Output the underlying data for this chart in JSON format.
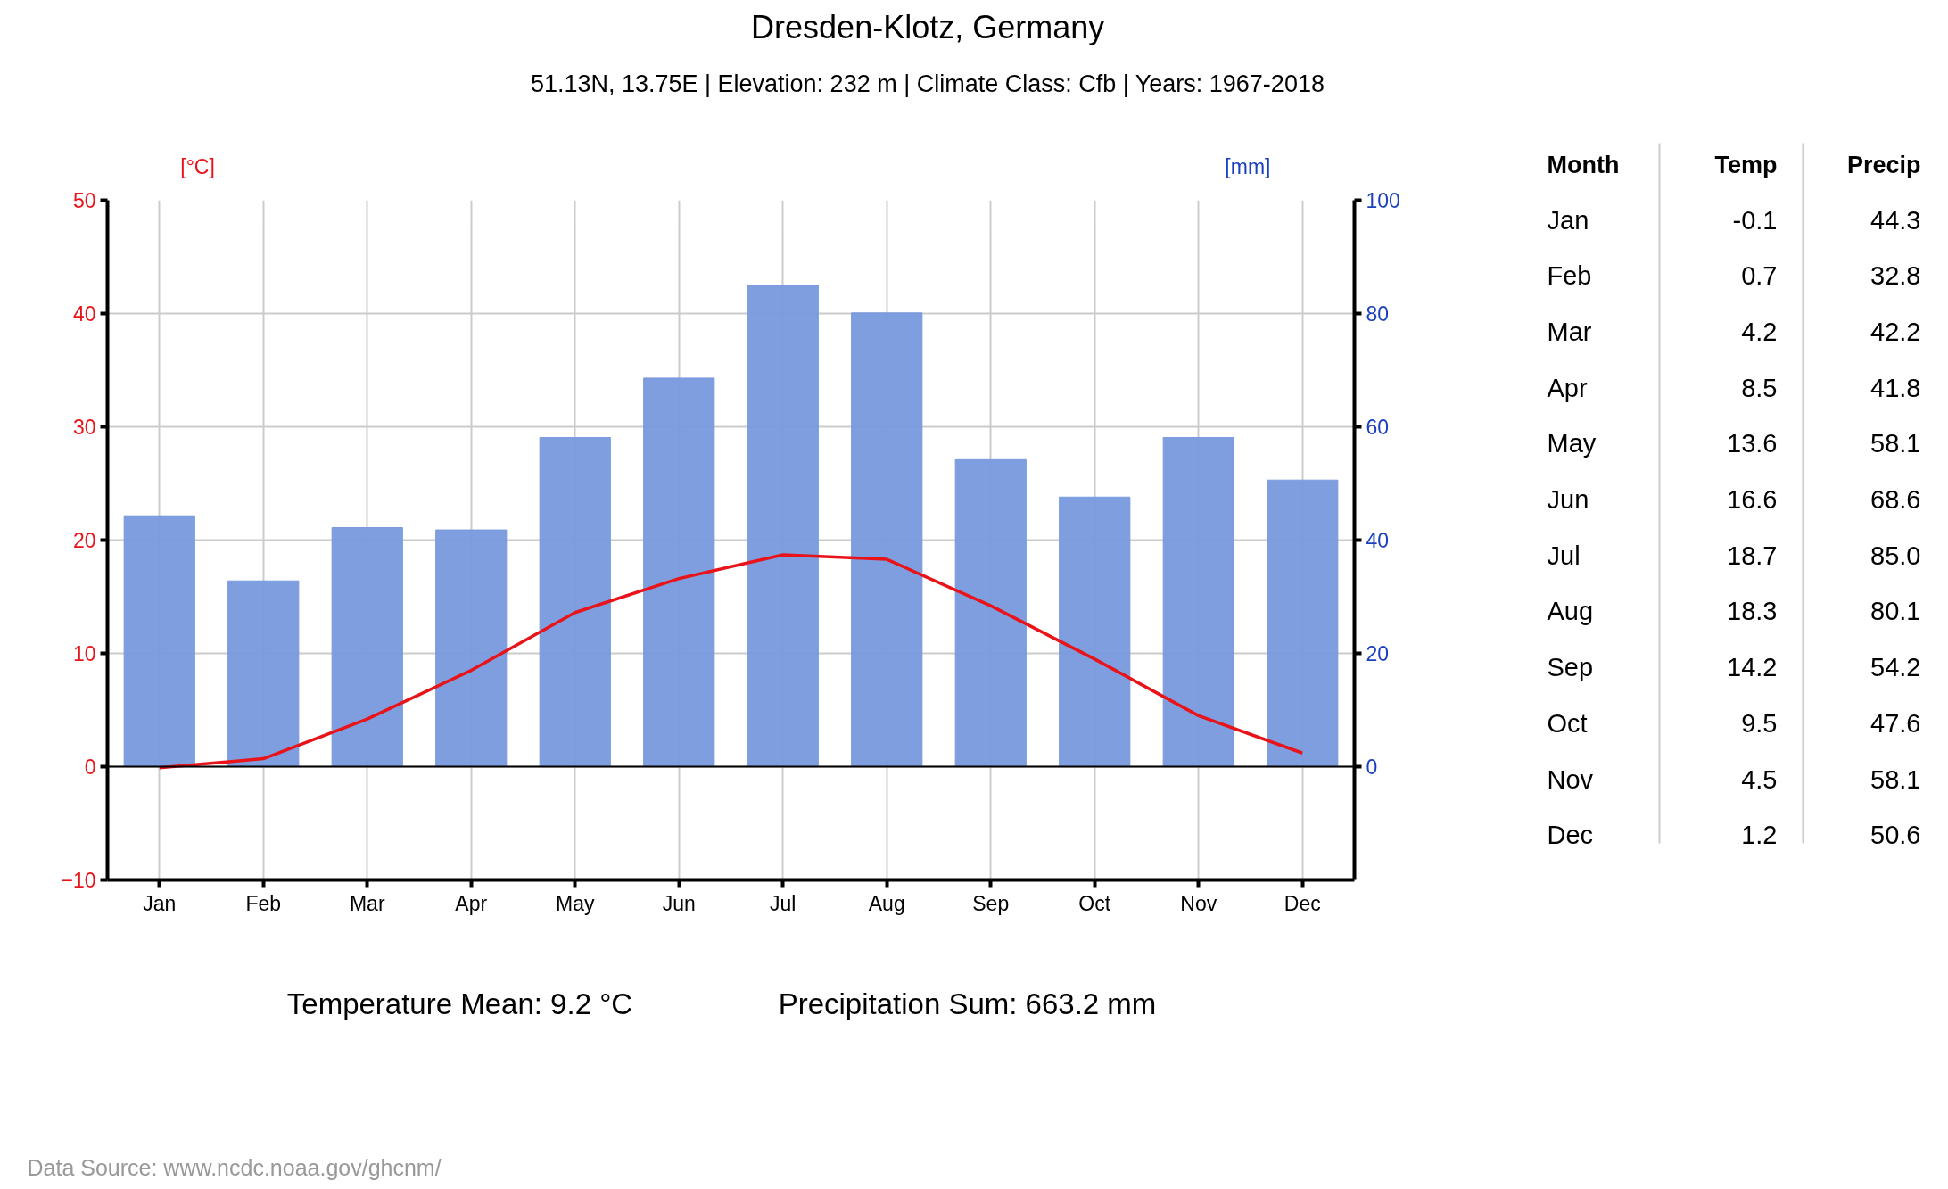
{
  "chart_data": [
    {
      "type": "bar",
      "title": "Dresden-Klotz, Germany",
      "subtitle": "51.13N, 13.75E | Elevation: 232 m | Climate Class: Cfb | Years: 1967-2018",
      "categories": [
        "Jan",
        "Feb",
        "Mar",
        "Apr",
        "May",
        "Jun",
        "Jul",
        "Aug",
        "Sep",
        "Oct",
        "Nov",
        "Dec"
      ],
      "series": [
        {
          "axis": "y2",
          "color": "#7799dd",
          "values": [
            44.3,
            32.8,
            42.2,
            41.8,
            58.1,
            68.6,
            85.0,
            80.1,
            54.2,
            47.6,
            58.1,
            50.6
          ]
        },
        {
          "type": "line",
          "color": "#e8141a",
          "values": [
            -0.1,
            0.7,
            4.2,
            8.5,
            13.6,
            16.6,
            18.7,
            18.3,
            14.2,
            9.5,
            4.5,
            1.2
          ]
        }
      ],
      "ylabel": "[°C]",
      "y2label": "[mm]",
      "ylim": [
        -10,
        50
      ],
      "yticks": [
        -10,
        0,
        10,
        20,
        30,
        40,
        50
      ],
      "y2lim": [
        -20,
        100
      ],
      "y2ticks": [
        0,
        20,
        40,
        60,
        80,
        100
      ],
      "ref_lines": [
        {
          "axis": "y",
          "value": 0,
          "color": "#000000"
        }
      ],
      "grid": true,
      "marker": "none",
      "line_style": "solid",
      "annotations": [
        "Temperature Mean: 9.2 °C",
        "Precipitation Sum: 663.2 mm",
        "Data Source: www.ncdc.noaa.gov/ghcnm/"
      ]
    },
    {
      "type": "other",
      "categories": [
        "Jan",
        "Feb",
        "Mar",
        "Apr",
        "May",
        "Jun",
        "Jul",
        "Aug",
        "Sep",
        "Oct",
        "Nov",
        "Dec"
      ],
      "series": [
        {
          "name": "Temp",
          "values": [
            -0.1,
            0.7,
            4.2,
            8.5,
            13.6,
            16.6,
            18.7,
            18.3,
            14.2,
            9.5,
            4.5,
            1.2
          ]
        },
        {
          "name": "Precip",
          "values": [
            44.3,
            32.8,
            42.2,
            41.8,
            58.1,
            68.6,
            85.0,
            80.1,
            54.2,
            47.6,
            58.1,
            50.6
          ],
          "value_labels": [
            "44.3",
            "32.8",
            "42.2",
            "41.8",
            "58.1",
            "68.6",
            "85.0",
            "80.1",
            "54.2",
            "47.6",
            "58.1",
            "50.6"
          ]
        }
      ],
      "annotations": [
        "Month"
      ],
      "data_labels": true
    }
  ]
}
